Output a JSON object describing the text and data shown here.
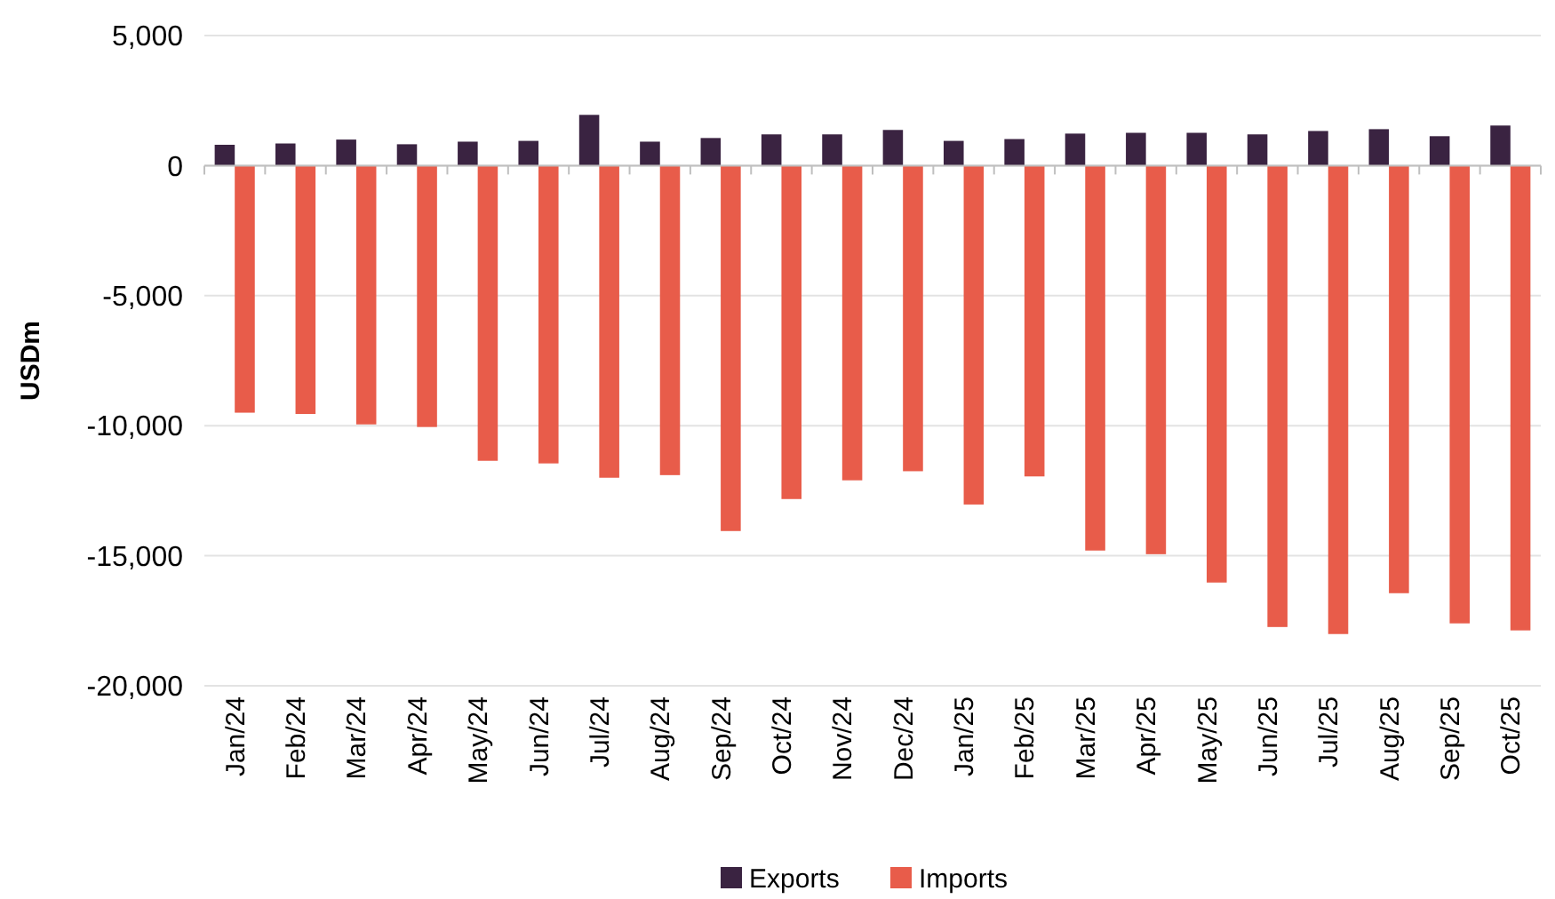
{
  "chart_data": {
    "type": "bar",
    "ylabel": "USDm",
    "categories": [
      "Jan/24",
      "Feb/24",
      "Mar/24",
      "Apr/24",
      "May/24",
      "Jun/24",
      "Jul/24",
      "Aug/24",
      "Sep/24",
      "Oct/24",
      "Nov/24",
      "Dec/24",
      "Jan/25",
      "Feb/25",
      "Mar/25",
      "Apr/25",
      "May/25",
      "Jun/25",
      "Jul/25",
      "Aug/25",
      "Sep/25",
      "Oct/25"
    ],
    "series": [
      {
        "name": "Exports",
        "color": "#3a2341",
        "values": [
          800,
          850,
          1000,
          820,
          920,
          950,
          1950,
          920,
          1060,
          1200,
          1200,
          1370,
          950,
          1020,
          1230,
          1260,
          1260,
          1200,
          1330,
          1400,
          1130,
          1540
        ]
      },
      {
        "name": "Imports",
        "color": "#e85c4a",
        "values": [
          -9500,
          -9550,
          -9950,
          -10050,
          -11350,
          -11450,
          -12000,
          -11900,
          -14050,
          -12820,
          -12100,
          -11750,
          -13030,
          -11950,
          -14800,
          -14940,
          -16030,
          -17740,
          -18010,
          -16440,
          -17600,
          -17870
        ]
      }
    ],
    "ylim": [
      -20000,
      5000
    ],
    "yticks": [
      {
        "value": -20000,
        "label": "-20,000"
      },
      {
        "value": -15000,
        "label": "-15,000"
      },
      {
        "value": -10000,
        "label": "-10,000"
      },
      {
        "value": -5000,
        "label": "-5,000"
      },
      0,
      {
        "value": 5000,
        "label": "5,000"
      }
    ],
    "grid": "y",
    "legend": "bottom"
  }
}
